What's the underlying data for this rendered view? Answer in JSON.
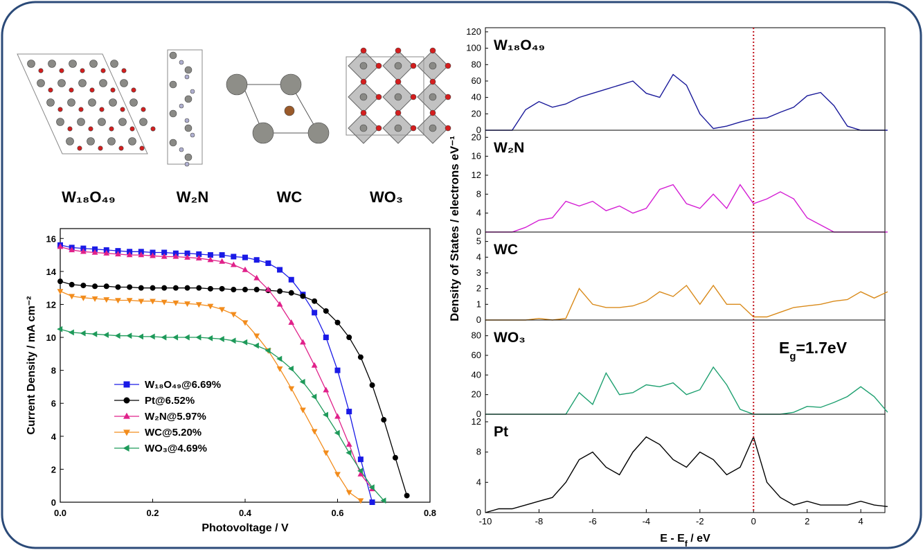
{
  "structures": [
    "W₁₈O₄₉",
    "W₂N",
    "WC",
    "WO₃"
  ],
  "chart_data": [
    {
      "type": "line",
      "xlabel": "Photovoltage / V",
      "ylabel": "Current Density / mA cm⁻²",
      "xlim": [
        0,
        0.8
      ],
      "ylim": [
        0,
        16.6
      ],
      "xticks": [
        {
          "value": 0,
          "label": "0.0"
        },
        0.2,
        0.4,
        0.6,
        0.8
      ],
      "yticks": [
        0,
        2,
        4,
        6,
        8,
        10,
        12,
        14,
        16
      ],
      "legend": "lower left",
      "x": [
        0,
        0.025,
        0.05,
        0.075,
        0.1,
        0.125,
        0.15,
        0.175,
        0.2,
        0.225,
        0.25,
        0.275,
        0.3,
        0.325,
        0.35,
        0.375,
        0.4,
        0.425,
        0.45,
        0.475,
        0.5,
        0.525,
        0.55,
        0.575,
        0.6,
        0.625,
        0.65,
        0.675,
        0.7,
        0.725,
        0.75
      ],
      "series": [
        {
          "name": "W₁₈O₄₉@6.69%",
          "color": "#1a1ae6",
          "marker": "square",
          "values": [
            15.6,
            15.45,
            15.4,
            15.35,
            15.3,
            15.25,
            15.2,
            15.2,
            15.15,
            15.15,
            15.1,
            15.1,
            15.05,
            15.0,
            15.0,
            14.9,
            14.85,
            14.7,
            14.5,
            14.1,
            13.5,
            12.6,
            11.5,
            10.0,
            8.0,
            5.5,
            2.6,
            0.0,
            null,
            null,
            null
          ]
        },
        {
          "name": "Pt@6.52%",
          "color": "#000000",
          "marker": "circle",
          "values": [
            13.4,
            13.2,
            13.15,
            13.1,
            13.1,
            13.05,
            13.05,
            13.0,
            13.0,
            13.0,
            13.0,
            13.0,
            13.0,
            12.95,
            12.95,
            12.9,
            12.9,
            12.9,
            12.85,
            12.8,
            12.7,
            12.5,
            12.2,
            11.6,
            10.9,
            10.0,
            8.8,
            7.1,
            5.0,
            2.7,
            0.4
          ]
        },
        {
          "name": "W₂N@5.97%",
          "color": "#e0218a",
          "marker": "triangle-up",
          "values": [
            15.5,
            15.3,
            15.2,
            15.15,
            15.1,
            15.05,
            15.0,
            15.0,
            14.95,
            14.9,
            14.9,
            14.85,
            14.8,
            14.7,
            14.6,
            14.4,
            14.1,
            13.6,
            12.9,
            12.0,
            10.9,
            9.7,
            8.3,
            6.8,
            5.2,
            3.5,
            1.7,
            0.8,
            null,
            null,
            null
          ]
        },
        {
          "name": "WC@5.20%",
          "color": "#f28c1c",
          "marker": "triangle-down",
          "values": [
            12.8,
            12.5,
            12.4,
            12.35,
            12.3,
            12.25,
            12.25,
            12.2,
            12.2,
            12.15,
            12.1,
            12.05,
            12.0,
            11.9,
            11.7,
            11.4,
            10.9,
            10.1,
            9.2,
            8.1,
            6.9,
            5.6,
            4.3,
            3.0,
            1.7,
            0.6,
            0.1,
            null,
            null,
            null,
            null
          ]
        },
        {
          "name": "WO₃@4.69%",
          "color": "#1e9a5a",
          "marker": "triangle-left",
          "values": [
            10.5,
            10.3,
            10.25,
            10.2,
            10.15,
            10.1,
            10.1,
            10.05,
            10.05,
            10.0,
            10.0,
            10.0,
            10.0,
            9.95,
            9.9,
            9.8,
            9.7,
            9.5,
            9.2,
            8.7,
            8.1,
            7.3,
            6.4,
            5.3,
            4.2,
            3.0,
            1.9,
            0.9,
            0.1,
            null,
            null
          ]
        }
      ]
    },
    {
      "type": "line",
      "xlabel": [
        "E - E",
        "f",
        " / eV"
      ],
      "ylabel": "Density of States  /  electrons eV⁻¹",
      "xlim": [
        -10,
        4.9
      ],
      "xticks": [
        -10,
        -8,
        -6,
        -4,
        -2,
        0,
        2,
        4
      ],
      "fermi_level": 0,
      "fermi_color": "#c0101a",
      "annotation": [
        "E",
        "g",
        "=1.7eV"
      ],
      "x": [
        -10,
        -9.5,
        -9,
        -8.5,
        -8,
        -7.5,
        -7,
        -6.5,
        -6,
        -5.5,
        -5,
        -4.5,
        -4,
        -3.5,
        -3,
        -2.5,
        -2,
        -1.5,
        -1,
        -0.5,
        0,
        0.5,
        1,
        1.5,
        2,
        2.5,
        3,
        3.5,
        4,
        4.5,
        5
      ],
      "panels": [
        {
          "name": "W₁₈O₄₉",
          "color": "#1a1a9a",
          "ylim": [
            0,
            125
          ],
          "yticks": [
            0,
            20,
            40,
            60,
            80,
            100,
            120
          ],
          "values": [
            0,
            0,
            0,
            25,
            35,
            28,
            32,
            40,
            45,
            50,
            55,
            60,
            45,
            40,
            68,
            55,
            20,
            2,
            5,
            10,
            14,
            15,
            22,
            28,
            42,
            46,
            30,
            5,
            0,
            0,
            0
          ]
        },
        {
          "name": "W₂N",
          "color": "#d41ed4",
          "ylim": [
            0,
            21.5
          ],
          "yticks": [
            0,
            4,
            8,
            12,
            16,
            20
          ],
          "values": [
            0,
            0,
            0,
            1,
            2.5,
            3,
            6.5,
            5.5,
            6.5,
            4.5,
            5.5,
            4,
            5,
            9,
            10,
            6,
            5,
            8,
            5,
            10,
            6,
            7,
            8.5,
            7,
            3,
            1.5,
            0,
            0,
            0,
            0,
            0
          ]
        },
        {
          "name": "WC",
          "color": "#d98a1a",
          "ylim": [
            0,
            5.6
          ],
          "yticks": [
            0,
            1,
            2,
            3,
            4,
            5
          ],
          "values": [
            0,
            0,
            0,
            0,
            0.1,
            0,
            0.1,
            2,
            1,
            0.8,
            0.8,
            0.9,
            1.2,
            1.8,
            1.5,
            2.2,
            1,
            2.2,
            1,
            1,
            0.2,
            0.2,
            0.5,
            0.8,
            0.9,
            1,
            1.2,
            1.3,
            1.8,
            1.4,
            1.8
          ]
        },
        {
          "name": "WO₃",
          "color": "#1ea070",
          "ylim": [
            0,
            96
          ],
          "yticks": [
            0,
            20,
            40,
            60,
            80
          ],
          "values": [
            0,
            0,
            0,
            0,
            0,
            0,
            0,
            22,
            10,
            42,
            20,
            22,
            30,
            28,
            32,
            20,
            25,
            48,
            30,
            5,
            0,
            0,
            0,
            2,
            8,
            7,
            12,
            18,
            28,
            18,
            2
          ]
        },
        {
          "name": "Pt",
          "color": "#000000",
          "ylim": [
            0,
            13
          ],
          "yticks": [
            0,
            4,
            8,
            12
          ],
          "values": [
            0,
            0.5,
            0.5,
            1,
            1.5,
            2,
            4,
            7,
            8,
            6,
            5,
            8,
            10,
            9,
            7,
            6,
            8,
            7,
            5,
            6,
            10,
            4,
            2,
            1,
            1.5,
            1,
            1,
            1,
            1.5,
            1,
            0.8
          ]
        }
      ]
    }
  ]
}
